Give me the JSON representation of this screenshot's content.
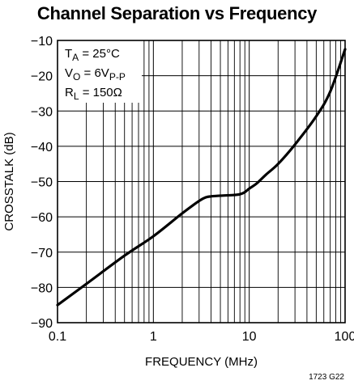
{
  "chart_data": {
    "type": "line",
    "title": "Channel Separation vs Frequency",
    "xlabel": "FREQUENCY (MHz)",
    "ylabel": "CROSSTALK (dB)",
    "xscale": "log",
    "xlim": [
      0.1,
      100
    ],
    "ylim": [
      -90,
      -10
    ],
    "x_ticks": [
      0.1,
      1,
      10,
      100
    ],
    "x_tick_labels": [
      "0.1",
      "1",
      "10",
      "100"
    ],
    "y_ticks": [
      -10,
      -20,
      -30,
      -40,
      -50,
      -60,
      -70,
      -80,
      -90
    ],
    "y_tick_labels": [
      "−10",
      "−20",
      "−30",
      "−40",
      "−50",
      "−60",
      "−70",
      "−80",
      "−90"
    ],
    "grid": true,
    "legend": "none",
    "conditions": [
      {
        "name": "T",
        "sub": "A",
        "rest": " = 25°C"
      },
      {
        "name": "V",
        "sub": "O",
        "rest": " = 6V",
        "sub2": "P-P"
      },
      {
        "name": "R",
        "sub": "L",
        "rest": " = 150Ω"
      }
    ],
    "series": [
      {
        "color": "#000000",
        "x": [
          0.1,
          0.2,
          0.5,
          1,
          2,
          3,
          3.5,
          4,
          5,
          7,
          8,
          9,
          10,
          12,
          15,
          20,
          30,
          50,
          70,
          100
        ],
        "y": [
          -85,
          -79,
          -71,
          -65.5,
          -59,
          -55.5,
          -54.5,
          -54.2,
          -54,
          -53.8,
          -53.6,
          -53,
          -52,
          -50.5,
          -48,
          -45,
          -39.5,
          -31.5,
          -24.5,
          -12.5
        ]
      }
    ],
    "figure_code": "1723 G22"
  }
}
